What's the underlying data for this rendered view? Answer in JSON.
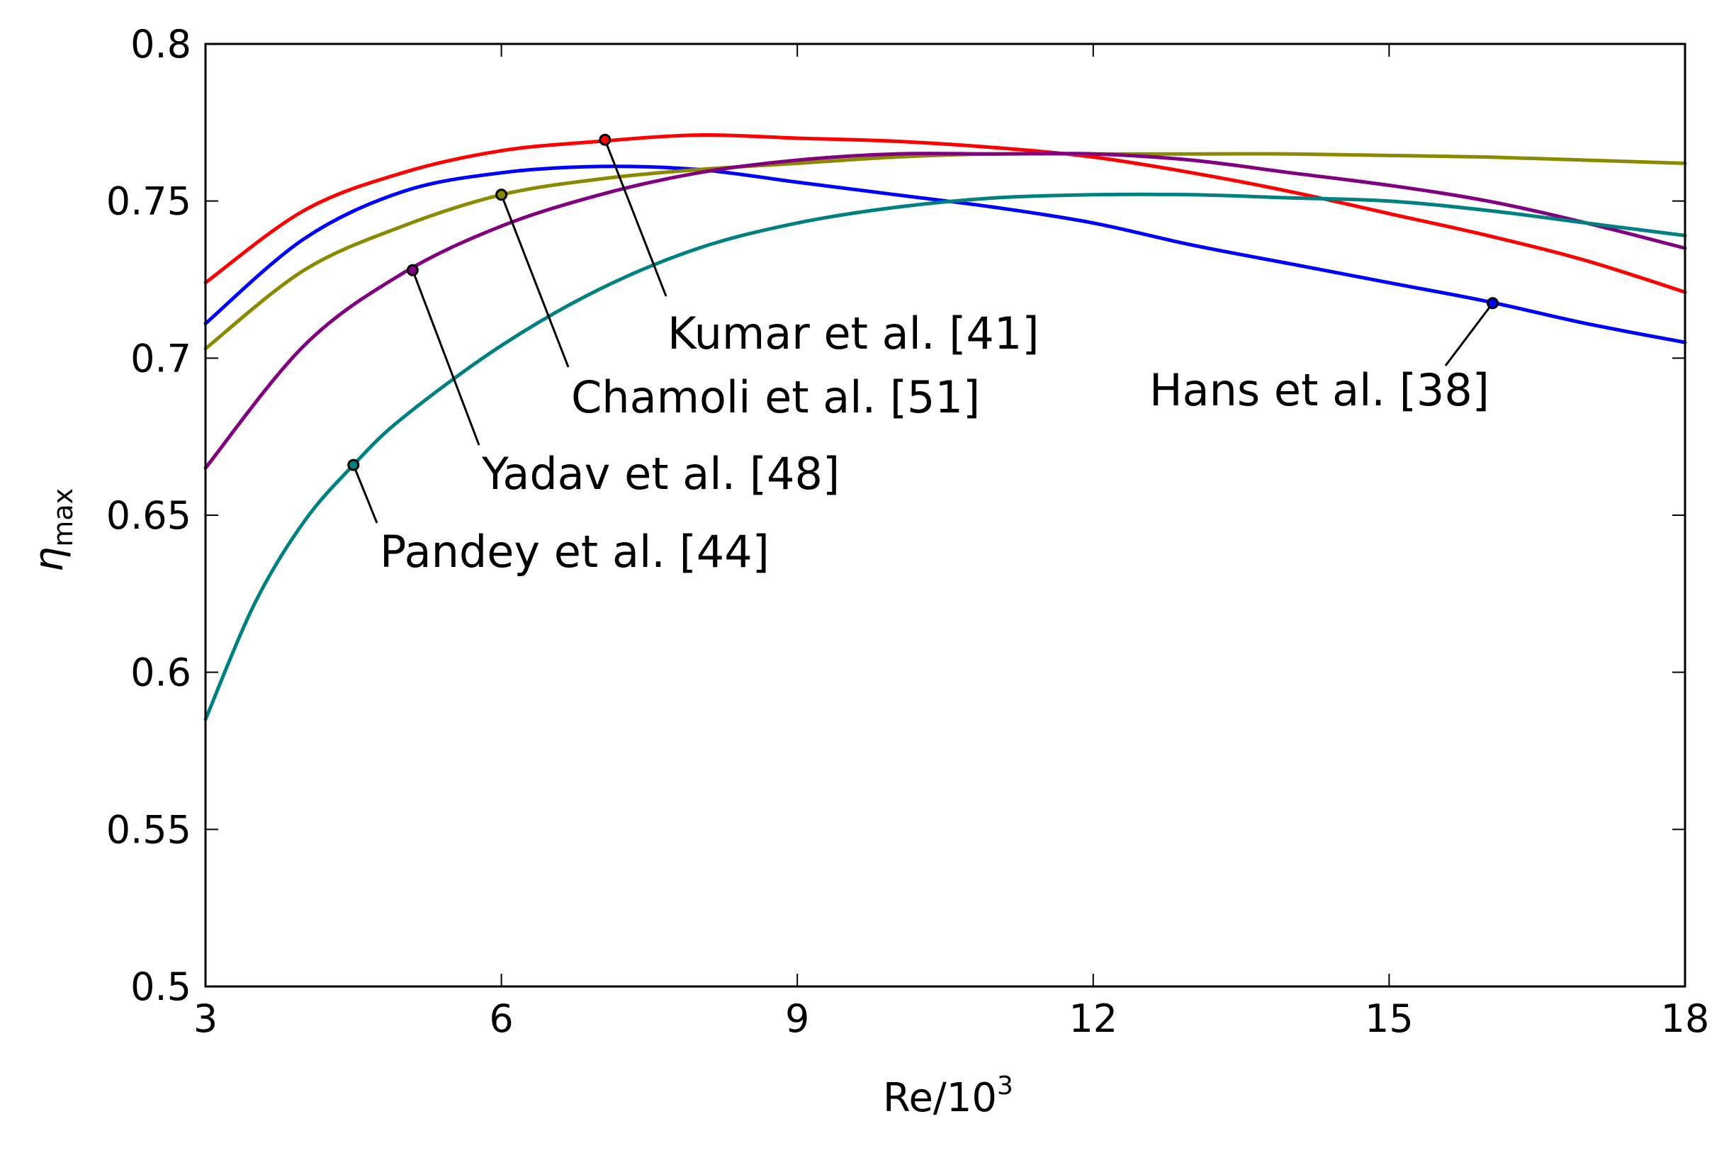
{
  "chart_data": {
    "type": "line",
    "title": "",
    "xlabel": "Re/10",
    "xlabel_sup": "3",
    "ylabel": "η",
    "ylabel_sub": "max",
    "xlim": [
      3,
      18
    ],
    "ylim": [
      0.5,
      0.8
    ],
    "xticks": [
      3,
      6,
      9,
      12,
      15,
      18
    ],
    "xtick_labels": [
      "3",
      "6",
      "9",
      "12",
      "15",
      "18"
    ],
    "yticks": [
      0.5,
      0.55,
      0.6,
      0.65,
      0.7,
      0.75,
      0.8
    ],
    "ytick_labels": [
      "0.5",
      "0.55",
      "0.6",
      "0.65",
      "0.7",
      "0.75",
      "0.8"
    ],
    "grid": false,
    "legend": "none",
    "series": [
      {
        "name": "Kumar et al. [41]",
        "color": "#ff0000",
        "x": [
          3,
          4,
          5,
          6,
          7,
          8,
          9,
          10,
          11,
          12,
          13,
          14,
          15,
          16,
          17,
          18
        ],
        "y": [
          0.724,
          0.747,
          0.759,
          0.766,
          0.769,
          0.771,
          0.77,
          0.769,
          0.767,
          0.764,
          0.759,
          0.753,
          0.746,
          0.739,
          0.731,
          0.721
        ],
        "annotation": {
          "label": "Kumar et al. [41]",
          "x": 7.05,
          "y": 0.7695
        }
      },
      {
        "name": "Hans et al. [38]",
        "color": "#0000ff",
        "x": [
          3,
          4,
          5,
          6,
          7,
          8,
          9,
          10,
          11,
          12,
          13,
          14,
          15,
          16,
          17,
          18
        ],
        "y": [
          0.711,
          0.738,
          0.753,
          0.759,
          0.761,
          0.76,
          0.756,
          0.752,
          0.748,
          0.743,
          0.736,
          0.73,
          0.724,
          0.718,
          0.711,
          0.705
        ],
        "annotation": {
          "label": "Hans et al. [38]",
          "x": 16.05,
          "y": 0.7175
        }
      },
      {
        "name": "Chamoli et al. [51]",
        "color": "#8a8a00",
        "x": [
          3,
          4,
          5,
          6,
          7,
          8,
          9,
          10,
          11,
          12,
          13,
          14,
          15,
          16,
          17,
          18
        ],
        "y": [
          0.703,
          0.728,
          0.742,
          0.752,
          0.757,
          0.76,
          0.762,
          0.764,
          0.765,
          0.765,
          0.765,
          0.765,
          0.7645,
          0.764,
          0.763,
          0.762
        ],
        "annotation": {
          "label": "Chamoli et al. [51]",
          "x": 6.0,
          "y": 0.752
        }
      },
      {
        "name": "Yadav et al. [48]",
        "color": "#800080",
        "x": [
          3,
          4,
          5,
          6,
          7,
          8,
          9,
          10,
          11,
          12,
          13,
          14,
          15,
          16,
          17,
          18
        ],
        "y": [
          0.665,
          0.704,
          0.727,
          0.742,
          0.752,
          0.759,
          0.763,
          0.765,
          0.765,
          0.765,
          0.763,
          0.759,
          0.755,
          0.75,
          0.743,
          0.735
        ],
        "annotation": {
          "label": "Yadav et al. [48]",
          "x": 5.1,
          "y": 0.728
        }
      },
      {
        "name": "Pandey et al. [44]",
        "color": "#008080",
        "x": [
          3,
          3.5,
          4,
          4.5,
          5,
          6,
          7,
          8,
          9,
          10,
          11,
          12,
          13,
          14,
          15,
          16,
          17,
          18
        ],
        "y": [
          0.585,
          0.622,
          0.648,
          0.666,
          0.681,
          0.704,
          0.722,
          0.735,
          0.743,
          0.748,
          0.751,
          0.752,
          0.752,
          0.751,
          0.75,
          0.747,
          0.743,
          0.739
        ],
        "annotation": {
          "label": "Pandey et al. [44]",
          "x": 4.5,
          "y": 0.666
        }
      }
    ]
  }
}
